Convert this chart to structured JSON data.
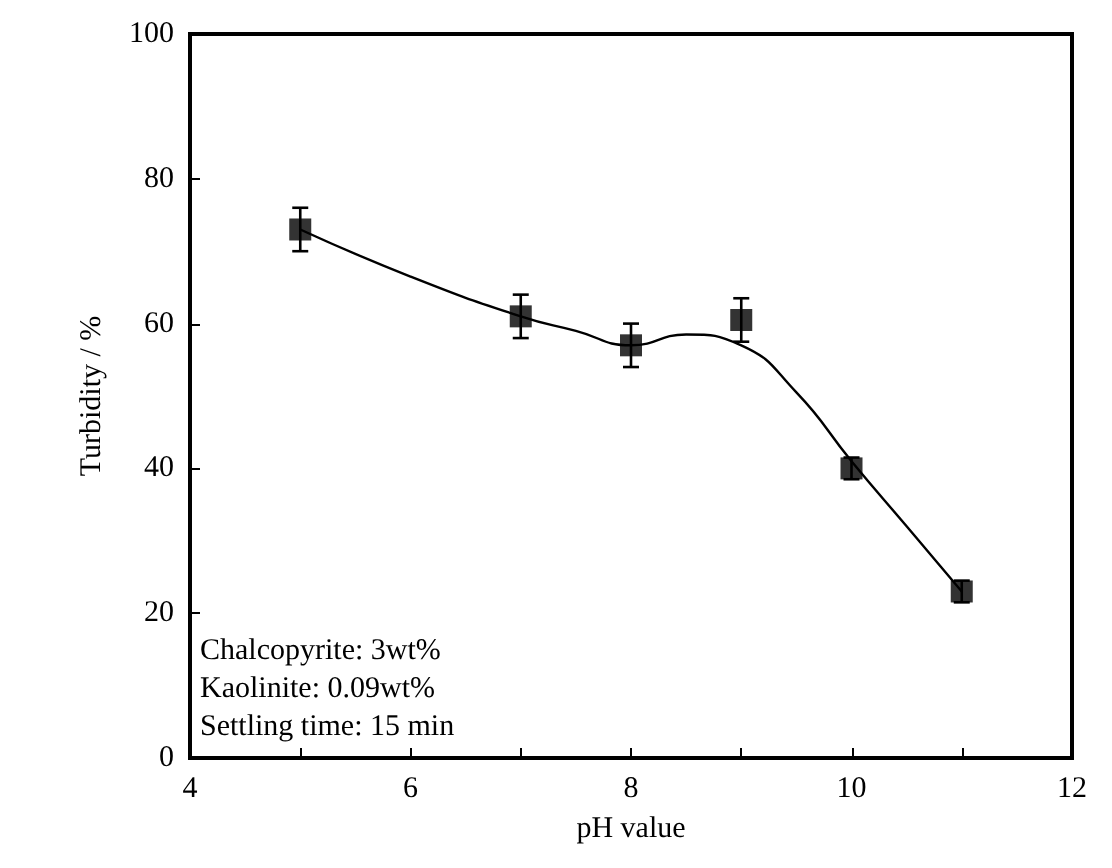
{
  "chart_data": {
    "type": "scatter",
    "xlabel": "pH value",
    "ylabel": "Turbidity / %",
    "xlim": [
      4,
      12
    ],
    "xticks": [
      4,
      {
        "value": 5,
        "label": null
      },
      6,
      {
        "value": 7,
        "label": null
      },
      8,
      {
        "value": 9,
        "label": null
      },
      10,
      {
        "value": 11,
        "label": null
      },
      12
    ],
    "ylim": [
      0,
      100
    ],
    "yticks": [
      0,
      20,
      40,
      60,
      80,
      100
    ],
    "grid": false,
    "marker": "square",
    "series": [
      {
        "color": "#000000",
        "x": [
          5,
          7,
          8,
          9,
          10,
          11
        ],
        "values": [
          73,
          61,
          57,
          60.5,
          40,
          23
        ],
        "errors": [
          3,
          3,
          3,
          3,
          1.5,
          1.5
        ]
      },
      {
        "type": "line",
        "color": "#000000",
        "marker": "none",
        "x": [
          5,
          6,
          7,
          7.5,
          8,
          8.5,
          9,
          9.5,
          10,
          10.5,
          11
        ],
        "values": [
          73,
          66.5,
          61,
          59,
          57,
          58.5,
          57,
          50.5,
          41,
          32,
          23
        ]
      }
    ],
    "annotations": [
      "Chalcopyrite: 3wt%",
      "Kaolinite: 0.09wt%",
      "Settling time: 15 min"
    ]
  }
}
